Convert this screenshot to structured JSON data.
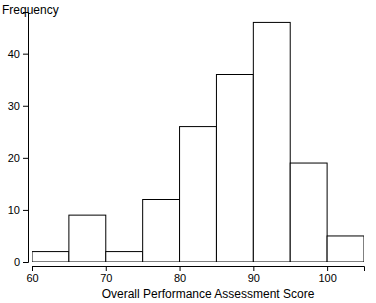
{
  "chart_data": {
    "type": "histogram",
    "xlabel": "Overall Performance Assessment Score",
    "ylabel": "Frequency",
    "bins": [
      60,
      65,
      70,
      75,
      80,
      85,
      90,
      95,
      100,
      105
    ],
    "values": [
      2,
      9,
      2,
      12,
      26,
      36,
      46,
      19,
      5
    ],
    "color": "#ffffff",
    "xlim": [
      60,
      105
    ],
    "xticks": [
      60,
      70,
      80,
      90,
      100
    ],
    "ylim": [
      0,
      48
    ],
    "yticks": [
      0,
      10,
      20,
      30,
      40
    ],
    "grid": false
  }
}
